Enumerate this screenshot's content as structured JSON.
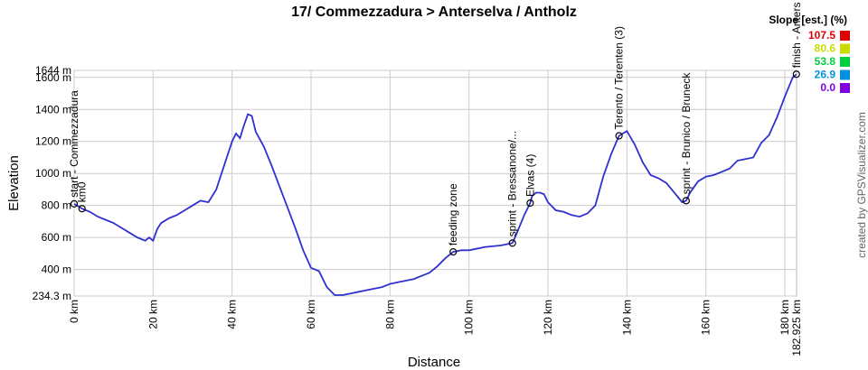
{
  "chart_data": {
    "type": "line",
    "title": "17/ Commezzadura > Anterselva / Antholz",
    "x_label": "Distance",
    "y_label": "Elevation",
    "credit": "created by GPSVisualizer.com",
    "xlim": [
      0,
      182.925
    ],
    "ylim": [
      234.3,
      1644
    ],
    "grid": true,
    "xticks": [
      {
        "value": 0,
        "label": "0 km"
      },
      {
        "value": 20,
        "label": "20 km"
      },
      {
        "value": 40,
        "label": "40 km"
      },
      {
        "value": 60,
        "label": "60 km"
      },
      {
        "value": 80,
        "label": "80 km"
      },
      {
        "value": 100,
        "label": "100 km"
      },
      {
        "value": 120,
        "label": "120 km"
      },
      {
        "value": 140,
        "label": "140 km"
      },
      {
        "value": 160,
        "label": "160 km"
      },
      {
        "value": 180,
        "label": "180 km"
      },
      {
        "value": 182.925,
        "label": "182.925 km"
      }
    ],
    "yticks": [
      {
        "value": 234.3,
        "label": "234.3 m"
      },
      {
        "value": 400,
        "label": "400 m"
      },
      {
        "value": 600,
        "label": "600 m"
      },
      {
        "value": 800,
        "label": "800 m"
      },
      {
        "value": 1000,
        "label": "1000 m"
      },
      {
        "value": 1200,
        "label": "1200 m"
      },
      {
        "value": 1400,
        "label": "1400 m"
      },
      {
        "value": 1600,
        "label": "1600 m"
      },
      {
        "value": 1644,
        "label": "1644 m"
      }
    ],
    "x": [
      0,
      2,
      4,
      6,
      8,
      10,
      12,
      14,
      16,
      18,
      19,
      20,
      21,
      22,
      24,
      26,
      28,
      30,
      32,
      34,
      36,
      38,
      40,
      41,
      42,
      43,
      44,
      45,
      46,
      48,
      50,
      52,
      54,
      56,
      58,
      60,
      62,
      64,
      66,
      68,
      70,
      72,
      74,
      76,
      78,
      80,
      82,
      84,
      86,
      88,
      90,
      92,
      94,
      96,
      98,
      100,
      102,
      104,
      106,
      108,
      110,
      111,
      112,
      114,
      115.5,
      116,
      117,
      118,
      119,
      120,
      122,
      124,
      126,
      128,
      130,
      132,
      134,
      136,
      138,
      140,
      142,
      144,
      146,
      148,
      150,
      152,
      154,
      155,
      156,
      158,
      160,
      162,
      164,
      166,
      168,
      170,
      172,
      174,
      176,
      178,
      180,
      182,
      182.925
    ],
    "series": [
      {
        "name": "Elevation",
        "color": "#3030d0",
        "values": [
          810,
          780,
          760,
          730,
          710,
          690,
          660,
          630,
          600,
          580,
          600,
          580,
          650,
          690,
          720,
          740,
          770,
          800,
          830,
          820,
          900,
          1050,
          1200,
          1250,
          1220,
          1300,
          1370,
          1360,
          1260,
          1170,
          1050,
          920,
          790,
          660,
          520,
          410,
          390,
          290,
          240,
          240,
          250,
          260,
          270,
          280,
          290,
          310,
          320,
          330,
          340,
          360,
          380,
          420,
          470,
          510,
          520,
          520,
          530,
          540,
          545,
          550,
          560,
          565,
          620,
          740,
          815,
          860,
          880,
          880,
          870,
          820,
          770,
          760,
          740,
          730,
          750,
          800,
          980,
          1120,
          1235,
          1265,
          1180,
          1070,
          990,
          970,
          940,
          880,
          820,
          830,
          880,
          950,
          980,
          990,
          1010,
          1030,
          1080,
          1090,
          1100,
          1190,
          1240,
          1350,
          1480,
          1600,
          1620
        ]
      }
    ],
    "annotations": [
      {
        "label": "start - Commezzadura",
        "x": 0,
        "y": 810
      },
      {
        "label": "km0",
        "x": 2,
        "y": 780
      },
      {
        "label": "feeding zone",
        "x": 96,
        "y": 510
      },
      {
        "label": "sprint - Bressanone/...",
        "x": 111,
        "y": 565
      },
      {
        "label": "Elvas (4)",
        "x": 115.5,
        "y": 815
      },
      {
        "label": "Terento / Terenten (3)",
        "x": 138,
        "y": 1235
      },
      {
        "label": "sprint - Brunico / Bruneck",
        "x": 155,
        "y": 830
      },
      {
        "label": "finish - Anters",
        "x": 182.925,
        "y": 1620
      }
    ],
    "legend": {
      "title": "Slope [est.] (%)",
      "entries": [
        {
          "value": 107.5,
          "color": "#e00000"
        },
        {
          "value": 80.6,
          "color": "#c8dc00"
        },
        {
          "value": 53.8,
          "color": "#00d040"
        },
        {
          "value": 26.9,
          "color": "#0090e0"
        },
        {
          "value": 0,
          "label": "0.0",
          "color": "#8000e0"
        }
      ]
    }
  }
}
